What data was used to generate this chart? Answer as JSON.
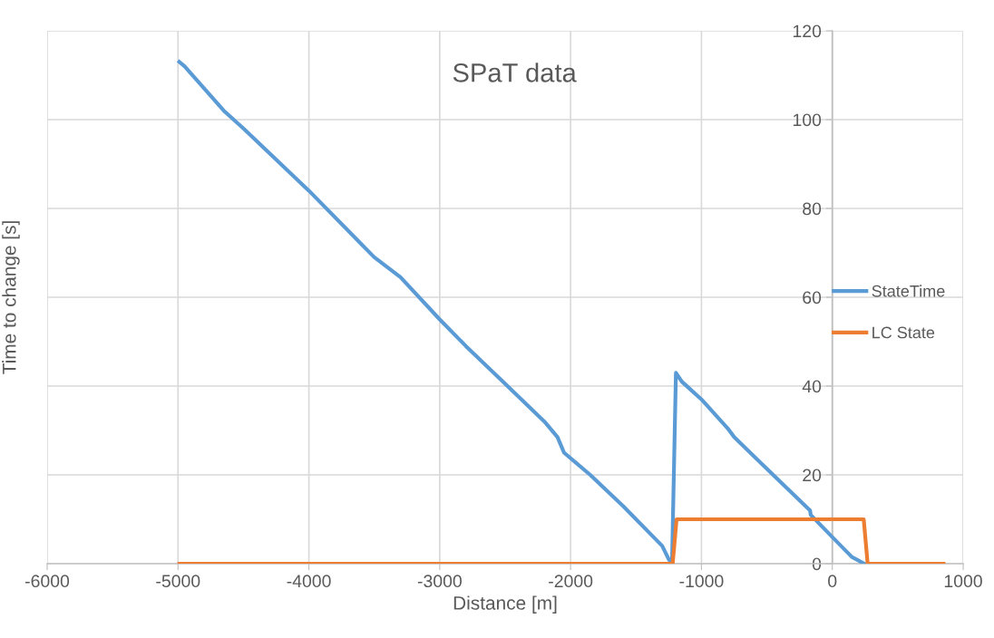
{
  "chart_data": {
    "type": "line",
    "title": "SPaT data",
    "xlabel": "Distance [m]",
    "ylabel": "Time to change [s]",
    "xlim": [
      -6000,
      1000
    ],
    "xticks": [
      -6000,
      -5000,
      -4000,
      -3000,
      -2000,
      -1000,
      0,
      1000
    ],
    "ylim": [
      0,
      120
    ],
    "yticks": [
      0,
      20,
      40,
      60,
      80,
      100,
      120
    ],
    "grid": true,
    "legend": "right",
    "marker": "none",
    "line_style": "solid",
    "series": [
      {
        "name": "StateTime",
        "color": "#5b9bd5",
        "x": [
          -4990,
          -4950,
          -4800,
          -4650,
          -4500,
          -4000,
          -3600,
          -3500,
          -3300,
          -3000,
          -2800,
          -2500,
          -2200,
          -2100,
          -2050,
          -1850,
          -1600,
          -1300,
          -1250,
          -1225,
          -1195,
          -1150,
          -1000,
          -800,
          -750,
          -400,
          -170,
          -165,
          0,
          150,
          245
        ],
        "values": [
          113,
          112,
          107,
          102,
          98,
          84,
          72,
          69,
          64.5,
          55,
          49,
          40.5,
          32,
          28.5,
          25,
          20,
          13,
          4,
          1,
          0,
          43,
          41,
          37,
          30.5,
          28.5,
          18.5,
          12,
          11,
          6,
          1.5,
          0
        ]
      },
      {
        "name": "LC State",
        "color": "#ed7d31",
        "x": [
          -4990,
          -1220,
          -1190,
          240,
          270,
          850
        ],
        "values": [
          0,
          0,
          10,
          10,
          0,
          0
        ]
      }
    ]
  }
}
